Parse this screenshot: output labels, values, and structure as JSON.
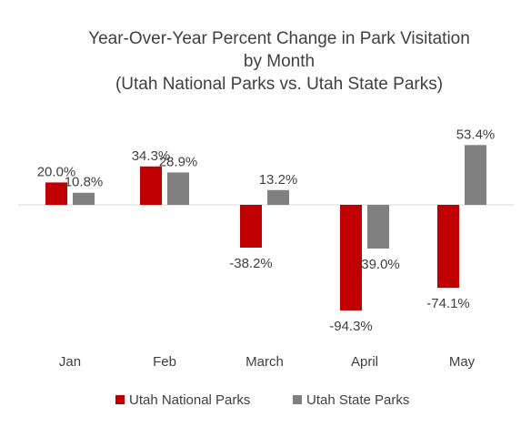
{
  "chart_data": {
    "type": "bar",
    "title_lines": [
      "Year-Over-Year Percent Change in Park Visitation",
      "by Month",
      "(Utah National Parks vs. Utah State Parks)"
    ],
    "categories": [
      "Jan",
      "Feb",
      "March",
      "April",
      "May"
    ],
    "series": [
      {
        "name": "Utah National Parks",
        "color": "#c00000",
        "values": [
          20.0,
          34.3,
          -38.2,
          -94.3,
          -74.1
        ],
        "labels": [
          "20.0%",
          "34.3%",
          "-38.2%",
          "-94.3%",
          "-74.1%"
        ]
      },
      {
        "name": "Utah State Parks",
        "color": "#808080",
        "values": [
          10.8,
          28.9,
          13.2,
          -39.0,
          53.4
        ],
        "labels": [
          "10.8%",
          "28.9%",
          "13.2%",
          "-39.0%",
          "53.4%"
        ]
      }
    ],
    "ylim": [
      -100,
      60
    ],
    "grid": false,
    "legend_position": "bottom"
  }
}
